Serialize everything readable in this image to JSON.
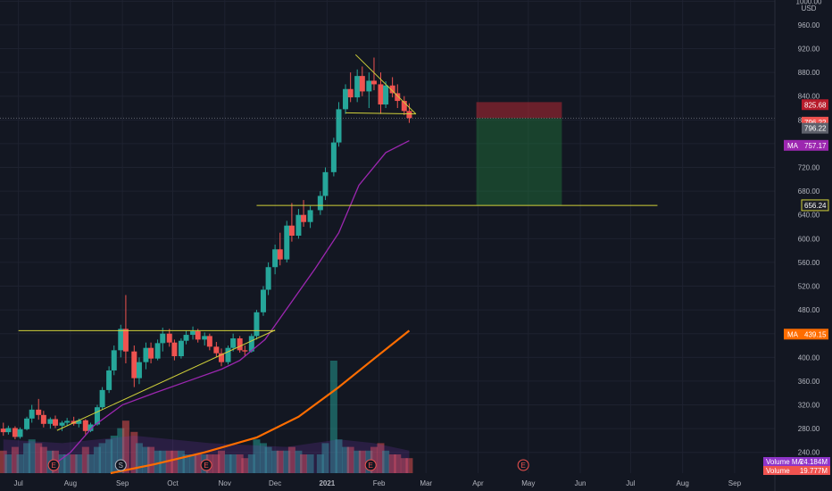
{
  "chart_data": {
    "type": "candlestick",
    "currency": "USD",
    "y_axis": {
      "ticks": [
        "1000.00",
        "960.00",
        "920.00",
        "880.00",
        "840.00",
        "800.00",
        "760.00",
        "720.00",
        "680.00",
        "640.00",
        "600.00",
        "560.00",
        "520.00",
        "480.00",
        "440.00",
        "400.00",
        "360.00",
        "320.00",
        "280.00",
        "240.00"
      ],
      "range": [
        205,
        1002
      ]
    },
    "x_axis": {
      "ticks": [
        "Jul",
        "Aug",
        "Sep",
        "Oct",
        "Nov",
        "Dec",
        "2021",
        "Feb",
        "Mar",
        "Apr",
        "May",
        "Jun",
        "Jul",
        "Aug",
        "Sep"
      ],
      "range": [
        "2020-06-20",
        "2021-09-25"
      ]
    },
    "price_tags": [
      {
        "label": "825.68",
        "color": "#b71c2b",
        "value": 825.68
      },
      {
        "label": "796.22",
        "color": "#f05350",
        "value": 796.22
      },
      {
        "label": "796.22",
        "color": "#5d606b",
        "value": 786
      },
      {
        "label": "757.17",
        "color": "#9c27b0",
        "prefix": "MA",
        "value": 757.17
      },
      {
        "label": "656.24",
        "color": "#1d1f27",
        "value": 656.24
      },
      {
        "label": "439.15",
        "color": "#ff6d00",
        "prefix": "MA",
        "value": 439.15
      }
    ],
    "volume_labels": [
      {
        "prefix": "Volume MA",
        "value": "24.184M",
        "color": "#8f35c9"
      },
      {
        "prefix": "Volume",
        "value": "19.777M",
        "color": "#f05350"
      }
    ],
    "event_markers": [
      {
        "label": "E",
        "date": "2020-07-22",
        "color": "#f05350"
      },
      {
        "label": "S",
        "date": "2020-08-31",
        "color": "#b2b5be"
      },
      {
        "label": "E",
        "date": "2020-10-21",
        "color": "#f05350"
      },
      {
        "label": "E",
        "date": "2021-01-27",
        "color": "#f05350"
      },
      {
        "label": "E",
        "date": "2021-04-28",
        "color": "#f05350"
      }
    ],
    "lines": [
      {
        "name": "resistance",
        "color": "#d1d13a",
        "from": [
          "2020-07-01",
          445
        ],
        "to": [
          "2020-12-01",
          445
        ]
      },
      {
        "name": "support-rising",
        "color": "#d1d13a",
        "from": [
          "2020-07-24",
          277
        ],
        "to": [
          "2020-12-01",
          446
        ]
      },
      {
        "name": "breakout-level",
        "color": "#d1d13a",
        "from": [
          "2020-11-20",
          656
        ],
        "to": [
          "2021-07-17",
          656
        ]
      },
      {
        "name": "wedge-top",
        "color": "#d1d13a",
        "from": [
          "2021-01-18",
          910
        ],
        "to": [
          "2021-02-23",
          810
        ]
      },
      {
        "name": "wedge-bottom",
        "color": "#d1d13a",
        "from": [
          "2021-01-12",
          812
        ],
        "to": [
          "2021-02-23",
          810
        ]
      },
      {
        "name": "current-price",
        "color": "#9598a1",
        "from": [
          "2020-06-20",
          803
        ],
        "to": [
          "2021-09-25",
          803
        ]
      }
    ],
    "position_box": {
      "start": "2021-03-31",
      "end": "2021-05-21",
      "entry": 803,
      "stop": 830,
      "target": 656
    },
    "ma_short": [
      [
        "2020-07-20",
        215
      ],
      [
        "2020-08-01",
        240
      ],
      [
        "2020-08-15",
        285
      ],
      [
        "2020-09-01",
        320
      ],
      [
        "2020-09-20",
        340
      ],
      [
        "2020-10-10",
        360
      ],
      [
        "2020-10-30",
        380
      ],
      [
        "2020-11-10",
        395
      ],
      [
        "2020-11-25",
        430
      ],
      [
        "2020-12-10",
        490
      ],
      [
        "2020-12-25",
        550
      ],
      [
        "2021-01-08",
        610
      ],
      [
        "2021-01-20",
        690
      ],
      [
        "2021-02-05",
        745
      ],
      [
        "2021-02-19",
        765
      ]
    ],
    "ma_long": [
      [
        "2020-08-25",
        205
      ],
      [
        "2020-09-20",
        220
      ],
      [
        "2020-10-20",
        240
      ],
      [
        "2020-11-20",
        265
      ],
      [
        "2020-12-15",
        300
      ],
      [
        "2021-01-08",
        350
      ],
      [
        "2021-01-30",
        400
      ],
      [
        "2021-02-19",
        445
      ]
    ],
    "candles": [
      [
        "2020-06-22",
        280,
        290,
        268,
        274
      ],
      [
        "2020-06-25",
        274,
        285,
        270,
        281
      ],
      [
        "2020-06-29",
        281,
        284,
        262,
        266
      ],
      [
        "2020-07-02",
        266,
        282,
        263,
        279
      ],
      [
        "2020-07-06",
        279,
        300,
        277,
        297
      ],
      [
        "2020-07-09",
        297,
        320,
        290,
        312
      ],
      [
        "2020-07-13",
        312,
        330,
        295,
        303
      ],
      [
        "2020-07-16",
        303,
        310,
        282,
        288
      ],
      [
        "2020-07-20",
        288,
        299,
        280,
        296
      ],
      [
        "2020-07-23",
        296,
        302,
        281,
        285
      ],
      [
        "2020-07-27",
        285,
        293,
        276,
        290
      ],
      [
        "2020-07-30",
        290,
        298,
        284,
        293
      ],
      [
        "2020-08-03",
        293,
        300,
        285,
        288
      ],
      [
        "2020-08-06",
        288,
        297,
        282,
        294
      ],
      [
        "2020-08-10",
        294,
        296,
        270,
        276
      ],
      [
        "2020-08-13",
        276,
        290,
        274,
        287
      ],
      [
        "2020-08-17",
        287,
        320,
        285,
        316
      ],
      [
        "2020-08-20",
        316,
        350,
        312,
        345
      ],
      [
        "2020-08-24",
        345,
        385,
        340,
        378
      ],
      [
        "2020-08-27",
        378,
        420,
        370,
        412
      ],
      [
        "2020-08-31",
        412,
        455,
        400,
        448
      ],
      [
        "2020-09-03",
        448,
        505,
        390,
        410
      ],
      [
        "2020-09-08",
        410,
        420,
        350,
        365
      ],
      [
        "2020-09-11",
        365,
        400,
        355,
        392
      ],
      [
        "2020-09-15",
        392,
        425,
        380,
        416
      ],
      [
        "2020-09-18",
        416,
        425,
        390,
        398
      ],
      [
        "2020-09-22",
        398,
        430,
        395,
        424
      ],
      [
        "2020-09-25",
        424,
        450,
        410,
        440
      ],
      [
        "2020-09-29",
        440,
        448,
        418,
        425
      ],
      [
        "2020-10-02",
        425,
        430,
        395,
        402
      ],
      [
        "2020-10-06",
        402,
        432,
        398,
        428
      ],
      [
        "2020-10-09",
        428,
        445,
        422,
        438
      ],
      [
        "2020-10-13",
        438,
        452,
        430,
        444
      ],
      [
        "2020-10-16",
        444,
        448,
        425,
        430
      ],
      [
        "2020-10-20",
        430,
        442,
        420,
        436
      ],
      [
        "2020-10-23",
        436,
        440,
        412,
        418
      ],
      [
        "2020-10-27",
        418,
        426,
        400,
        407
      ],
      [
        "2020-10-30",
        407,
        415,
        385,
        392
      ],
      [
        "2020-11-03",
        392,
        420,
        388,
        416
      ],
      [
        "2020-11-06",
        416,
        440,
        410,
        432
      ],
      [
        "2020-11-10",
        432,
        436,
        408,
        412
      ],
      [
        "2020-11-13",
        412,
        420,
        402,
        410
      ],
      [
        "2020-11-17",
        410,
        440,
        408,
        436
      ],
      [
        "2020-11-20",
        436,
        480,
        430,
        476
      ],
      [
        "2020-11-24",
        476,
        520,
        470,
        514
      ],
      [
        "2020-11-27",
        514,
        560,
        505,
        552
      ],
      [
        "2020-12-01",
        552,
        590,
        540,
        582
      ],
      [
        "2020-12-04",
        582,
        610,
        555,
        565
      ],
      [
        "2020-12-08",
        565,
        630,
        560,
        622
      ],
      [
        "2020-12-11",
        622,
        660,
        595,
        605
      ],
      [
        "2020-12-15",
        605,
        650,
        600,
        640
      ],
      [
        "2020-12-18",
        640,
        665,
        620,
        628
      ],
      [
        "2020-12-22",
        628,
        655,
        618,
        648
      ],
      [
        "2020-12-28",
        648,
        680,
        640,
        672
      ],
      [
        "2020-12-31",
        672,
        720,
        665,
        712
      ],
      [
        "2021-01-05",
        712,
        770,
        705,
        762
      ],
      [
        "2021-01-08",
        762,
        830,
        755,
        818
      ],
      [
        "2021-01-12",
        818,
        860,
        810,
        852
      ],
      [
        "2021-01-15",
        852,
        880,
        830,
        838
      ],
      [
        "2021-01-19",
        838,
        885,
        830,
        874
      ],
      [
        "2021-01-22",
        874,
        890,
        840,
        848
      ],
      [
        "2021-01-26",
        848,
        880,
        820,
        866
      ],
      [
        "2021-01-29",
        866,
        905,
        850,
        860
      ],
      [
        "2021-02-02",
        860,
        880,
        810,
        826
      ],
      [
        "2021-02-05",
        826,
        865,
        820,
        858
      ],
      [
        "2021-02-09",
        858,
        872,
        838,
        845
      ],
      [
        "2021-02-12",
        845,
        860,
        820,
        832
      ],
      [
        "2021-02-16",
        832,
        840,
        808,
        815
      ],
      [
        "2021-02-19",
        815,
        828,
        795,
        803
      ]
    ],
    "volumes": [
      [
        6,
        "d"
      ],
      [
        5,
        "u"
      ],
      [
        7,
        "d"
      ],
      [
        5,
        "u"
      ],
      [
        8,
        "u"
      ],
      [
        9,
        "u"
      ],
      [
        8,
        "d"
      ],
      [
        7,
        "d"
      ],
      [
        6,
        "u"
      ],
      [
        6,
        "d"
      ],
      [
        5,
        "u"
      ],
      [
        5,
        "u"
      ],
      [
        5,
        "d"
      ],
      [
        5,
        "u"
      ],
      [
        7,
        "d"
      ],
      [
        5,
        "u"
      ],
      [
        7,
        "u"
      ],
      [
        8,
        "u"
      ],
      [
        9,
        "u"
      ],
      [
        10,
        "u"
      ],
      [
        12,
        "u"
      ],
      [
        14,
        "d"
      ],
      [
        11,
        "d"
      ],
      [
        8,
        "u"
      ],
      [
        7,
        "u"
      ],
      [
        7,
        "d"
      ],
      [
        6,
        "u"
      ],
      [
        6,
        "u"
      ],
      [
        6,
        "d"
      ],
      [
        6,
        "d"
      ],
      [
        6,
        "u"
      ],
      [
        5,
        "u"
      ],
      [
        5,
        "u"
      ],
      [
        5,
        "d"
      ],
      [
        5,
        "u"
      ],
      [
        5,
        "d"
      ],
      [
        5,
        "d"
      ],
      [
        6,
        "d"
      ],
      [
        5,
        "u"
      ],
      [
        5,
        "u"
      ],
      [
        5,
        "d"
      ],
      [
        4,
        "d"
      ],
      [
        5,
        "u"
      ],
      [
        9,
        "u"
      ],
      [
        8,
        "u"
      ],
      [
        7,
        "u"
      ],
      [
        6,
        "u"
      ],
      [
        6,
        "d"
      ],
      [
        6,
        "u"
      ],
      [
        7,
        "d"
      ],
      [
        6,
        "u"
      ],
      [
        5,
        "d"
      ],
      [
        5,
        "u"
      ],
      [
        5,
        "u"
      ],
      [
        8,
        "u"
      ],
      [
        30,
        "u"
      ],
      [
        9,
        "u"
      ],
      [
        7,
        "u"
      ],
      [
        7,
        "d"
      ],
      [
        6,
        "u"
      ],
      [
        6,
        "d"
      ],
      [
        6,
        "u"
      ],
      [
        7,
        "d"
      ],
      [
        8,
        "d"
      ],
      [
        6,
        "u"
      ],
      [
        5,
        "d"
      ],
      [
        5,
        "d"
      ],
      [
        4,
        "d"
      ],
      [
        4,
        "d"
      ]
    ],
    "volume_ma": [
      [
        0,
        9
      ],
      [
        10,
        8
      ],
      [
        22,
        10
      ],
      [
        35,
        8
      ],
      [
        48,
        7
      ],
      [
        56,
        9
      ],
      [
        62,
        8
      ],
      [
        68,
        6
      ]
    ]
  }
}
